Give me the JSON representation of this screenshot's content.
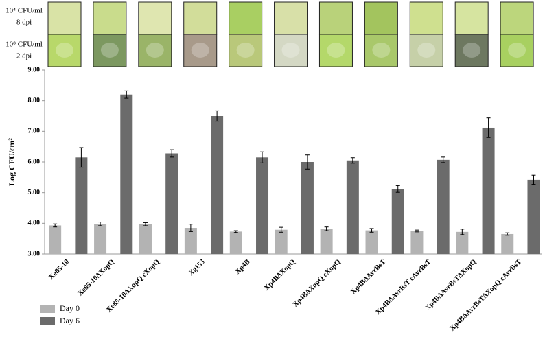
{
  "chart_data": {
    "type": "bar",
    "annotations": [
      "10⁴ CFU/ml",
      "8 dpi",
      "10⁸ CFU/ml",
      "2 dpi"
    ],
    "y_label": "Log CFU/cm²",
    "categories": [
      "Xe85-10",
      "Xe85-10ΔXopQ",
      "Xe85-10ΔXopQ cXopQ",
      "Xg153",
      "Xp4B",
      "Xp4BΔXopQ",
      "Xp4BΔXopQ cXopQ",
      "Xp4BΔAvrBsT",
      "Xp4BΔAvrBsT cAvrBsT",
      "Xp4BΔAvrBsTΔXopQ",
      "Xp4BΔAvrBsTΔXopQ cAvrBsT"
    ],
    "series": [
      {
        "name": "Day 0",
        "color": "#b3b3b3",
        "values": [
          3.93,
          3.98,
          3.97,
          3.85,
          3.73,
          3.79,
          3.82,
          3.77,
          3.75,
          3.72,
          3.65
        ],
        "errors": [
          0.05,
          0.06,
          0.05,
          0.12,
          0.03,
          0.08,
          0.06,
          0.06,
          0.03,
          0.09,
          0.04
        ]
      },
      {
        "name": "Day 6",
        "color": "#6b6b6b",
        "values": [
          6.15,
          8.2,
          6.28,
          7.5,
          6.15,
          6.0,
          6.05,
          5.12,
          6.07,
          7.12,
          5.42
        ],
        "errors": [
          0.32,
          0.12,
          0.12,
          0.17,
          0.18,
          0.23,
          0.09,
          0.11,
          0.09,
          0.32,
          0.15
        ]
      }
    ],
    "ylim": [
      3,
      9
    ],
    "yticks": [
      {
        "value": 3,
        "label": "3.00"
      },
      {
        "value": 4,
        "label": "4.00"
      },
      {
        "value": 5,
        "label": "5.00"
      },
      {
        "value": 6,
        "label": "6.00"
      },
      {
        "value": 7,
        "label": "7.00"
      },
      {
        "value": 8,
        "label": "8.00"
      },
      {
        "value": 9,
        "label": "9.00"
      }
    ],
    "grid": false,
    "legend": "bottom-left"
  }
}
